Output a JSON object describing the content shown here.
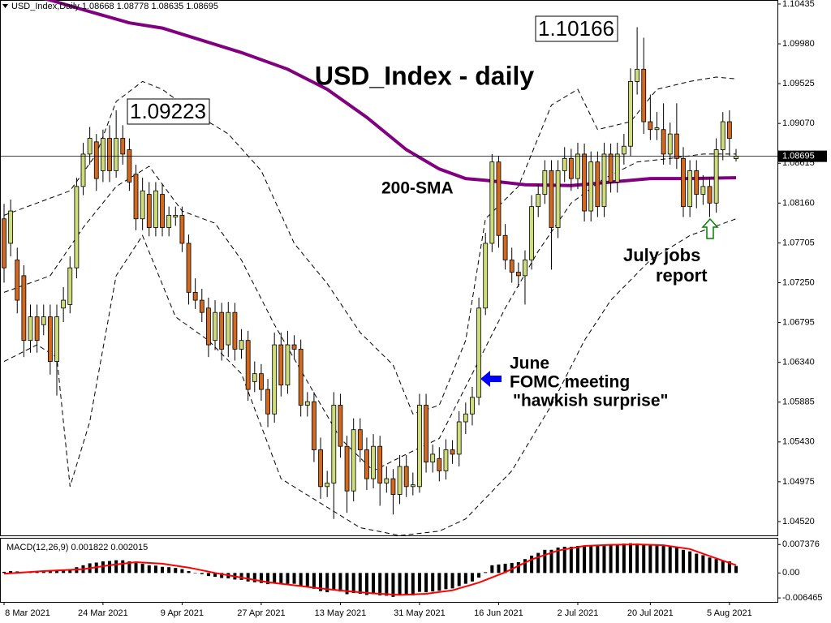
{
  "chart_data": [
    {
      "type": "candlestick",
      "title": "USD_Index - daily",
      "legend_text": "USD_Index,Daily  1.08668 1.08778 1.08635 1.08695",
      "up_color": "#cfdc7a",
      "down_color": "#d2691e",
      "categories": [
        "8 Mar 2021",
        null,
        null,
        null,
        null,
        null,
        null,
        null,
        null,
        null,
        null,
        null,
        null,
        null,
        null,
        "24 Mar 2021",
        null,
        null,
        null,
        null,
        null,
        null,
        null,
        null,
        null,
        null,
        null,
        "9 Apr 2021",
        null,
        null,
        null,
        null,
        null,
        null,
        null,
        null,
        null,
        null,
        null,
        "27 Apr 2021",
        null,
        null,
        null,
        null,
        null,
        null,
        null,
        null,
        null,
        null,
        null,
        "13 May 2021",
        null,
        null,
        null,
        null,
        null,
        null,
        null,
        null,
        null,
        null,
        null,
        "31 May 2021",
        null,
        null,
        null,
        null,
        null,
        null,
        null,
        null,
        null,
        null,
        null,
        "16 Jun 2021",
        null,
        null,
        null,
        null,
        null,
        null,
        null,
        null,
        null,
        null,
        null,
        "2 Jul 2021",
        null,
        null,
        null,
        null,
        null,
        null,
        null,
        null,
        null,
        null,
        "20 Jul 2021",
        null,
        null,
        null,
        null,
        null,
        null,
        null,
        null,
        null,
        null,
        null,
        "5 Aug 2021",
        null
      ],
      "open": [
        1.0798,
        1.077,
        1.0751,
        1.0733,
        1.0659,
        1.0686,
        1.0677,
        1.0686,
        1.0635,
        1.0696,
        1.07,
        1.0742,
        1.0835,
        1.0872,
        1.0886,
        1.0853,
        1.089,
        1.0853,
        1.089,
        1.0877,
        1.0849,
        1.0798,
        1.0826,
        1.0788,
        1.0826,
        1.0788,
        1.08,
        1.0802,
        1.077,
        1.0714,
        1.0705,
        1.0696,
        1.0659,
        1.0691,
        1.0654,
        1.0691,
        1.0649,
        1.0659,
        1.0612,
        1.0621,
        1.0603,
        1.0575,
        1.0654,
        1.0608,
        1.0654,
        1.0649,
        1.0585,
        1.0589,
        1.0534,
        1.0492,
        1.0496,
        1.0585,
        1.0538,
        1.0487,
        1.0557,
        1.0534,
        1.0501,
        1.0538,
        1.0496,
        1.0501,
        1.0483,
        1.0515,
        1.0492,
        1.0492,
        1.0585,
        1.052,
        1.0524,
        1.051,
        1.0534,
        1.0529,
        1.0566,
        1.0575,
        1.0594,
        1.0696,
        1.077,
        1.0863,
        1.0779,
        1.0751,
        1.0737,
        1.0733,
        1.0751,
        1.0812,
        1.0826,
        1.0853,
        1.0788,
        1.0853,
        1.0867,
        1.0844,
        1.0872,
        1.0807,
        1.0863,
        1.0812,
        1.0872,
        1.084,
        1.0872,
        1.0881,
        1.0955,
        1.0969,
        1.0909,
        1.09,
        1.09,
        1.0872,
        1.0895,
        1.0867,
        1.0812,
        1.0853,
        1.0826,
        1.0835,
        1.0816,
        1.0877,
        1.0909,
        1.08668
      ],
      "high": [
        1.0815,
        1.082,
        1.0765,
        1.0745,
        1.07,
        1.07,
        1.07,
        1.07,
        1.07,
        1.072,
        1.0755,
        1.0845,
        1.0885,
        1.0903,
        1.0895,
        1.09,
        1.0905,
        1.0922,
        1.0905,
        1.089,
        1.086,
        1.0845,
        1.084,
        1.084,
        1.0838,
        1.0812,
        1.0812,
        1.0812,
        1.078,
        1.073,
        1.0718,
        1.0708,
        1.0705,
        1.0702,
        1.0703,
        1.0702,
        1.0672,
        1.067,
        1.0635,
        1.0632,
        1.0615,
        1.0668,
        1.0668,
        1.067,
        1.0665,
        1.066,
        1.06,
        1.06,
        1.0548,
        1.051,
        1.06,
        1.0598,
        1.055,
        1.057,
        1.057,
        1.0548,
        1.0552,
        1.055,
        1.0515,
        1.0512,
        1.0528,
        1.0528,
        1.0508,
        1.0598,
        1.0598,
        1.054,
        1.0537,
        1.0546,
        1.0545,
        1.0578,
        1.0588,
        1.0606,
        1.0708,
        1.0782,
        1.0872,
        1.087,
        1.0792,
        1.0765,
        1.0748,
        1.0762,
        1.0825,
        1.0838,
        1.0865,
        1.0865,
        1.0865,
        1.088,
        1.0878,
        1.0885,
        1.0884,
        1.0875,
        1.0875,
        1.0885,
        1.0884,
        1.0885,
        1.0895,
        1.097,
        1.1017,
        1.1005,
        1.094,
        1.092,
        1.093,
        1.0908,
        1.093,
        1.088,
        1.0865,
        1.0865,
        1.0848,
        1.0846,
        1.089,
        1.092,
        1.0922,
        1.08778
      ],
      "low": [
        1.0725,
        1.0755,
        1.069,
        1.064,
        1.0645,
        1.0645,
        1.0665,
        1.062,
        1.0596,
        1.068,
        1.069,
        1.073,
        1.0825,
        1.086,
        1.083,
        1.084,
        1.084,
        1.0845,
        1.086,
        1.083,
        1.0785,
        1.0785,
        1.0778,
        1.0778,
        1.0778,
        1.0778,
        1.079,
        1.076,
        1.07,
        1.0695,
        1.068,
        1.064,
        1.0648,
        1.0636,
        1.064,
        1.0636,
        1.0638,
        1.059,
        1.06,
        1.059,
        1.056,
        1.0565,
        1.0595,
        1.0598,
        1.0638,
        1.0572,
        1.0572,
        1.052,
        1.0478,
        1.048,
        1.0455,
        1.0525,
        1.0462,
        1.0475,
        1.052,
        1.0488,
        1.049,
        1.047,
        1.0485,
        1.046,
        1.0472,
        1.048,
        1.0482,
        1.0485,
        1.0508,
        1.0508,
        1.0498,
        1.05,
        1.0518,
        1.0515,
        1.0552,
        1.0562,
        1.0585,
        1.0688,
        1.076,
        1.0765,
        1.074,
        1.0725,
        1.072,
        1.07,
        1.074,
        1.08,
        1.0815,
        1.074,
        1.0776,
        1.084,
        1.083,
        1.0832,
        1.0795,
        1.0795,
        1.08,
        1.08,
        1.0828,
        1.0828,
        1.086,
        1.087,
        1.094,
        1.0895,
        1.0888,
        1.0888,
        1.086,
        1.086,
        1.0855,
        1.08,
        1.08,
        1.081,
        1.0814,
        1.08,
        1.0805,
        1.0865,
        1.087,
        1.08635
      ],
      "close": [
        1.0742,
        1.0807,
        1.0705,
        1.0659,
        1.0686,
        1.0659,
        1.0686,
        1.0635,
        1.0686,
        1.0705,
        1.0742,
        1.0835,
        1.0872,
        1.089,
        1.0844,
        1.089,
        1.0853,
        1.089,
        1.0872,
        1.084,
        1.0798,
        1.083,
        1.0788,
        1.083,
        1.0788,
        1.0802,
        1.0802,
        1.077,
        1.0714,
        1.0705,
        1.0691,
        1.0654,
        1.0691,
        1.0649,
        1.0691,
        1.0649,
        1.0659,
        1.0603,
        1.0621,
        1.0603,
        1.0575,
        1.0654,
        1.0608,
        1.0654,
        1.0649,
        1.0585,
        1.0589,
        1.0534,
        1.0492,
        1.0496,
        1.0585,
        1.0538,
        1.0487,
        1.0557,
        1.0534,
        1.0501,
        1.0538,
        1.0496,
        1.0501,
        1.0483,
        1.0515,
        1.0492,
        1.0494,
        1.0585,
        1.052,
        1.0529,
        1.051,
        1.0534,
        1.0529,
        1.0566,
        1.0575,
        1.0594,
        1.0696,
        1.077,
        1.0863,
        1.0779,
        1.0751,
        1.0737,
        1.0733,
        1.0751,
        1.0812,
        1.0826,
        1.0853,
        1.0788,
        1.0853,
        1.0867,
        1.0844,
        1.0872,
        1.0807,
        1.0863,
        1.0812,
        1.0872,
        1.084,
        1.0872,
        1.0881,
        1.0955,
        1.0969,
        1.0909,
        1.09,
        1.0902,
        1.0872,
        1.0895,
        1.0867,
        1.0812,
        1.0853,
        1.0826,
        1.0835,
        1.0816,
        1.0877,
        1.0909,
        1.089,
        1.08695
      ],
      "lines": [
        {
          "color": "#800080",
          "dash": false,
          "x": [
            0,
            7,
            12,
            19,
            24,
            30,
            36,
            43,
            49,
            55,
            61,
            66,
            70,
            73,
            79,
            86,
            92,
            98,
            104,
            111
          ],
          "values": [
            1.106,
            1.1048,
            1.1037,
            1.1022,
            1.1016,
            1.1002,
            1.0988,
            1.0969,
            1.0946,
            1.0914,
            1.0877,
            1.0855,
            1.0844,
            1.0842,
            1.0837,
            1.0836,
            1.084,
            1.0844,
            1.0844,
            1.0845
          ]
        },
        {
          "color": "#000000",
          "dash": true,
          "x": [
            0,
            5,
            10,
            14,
            17,
            21,
            24,
            29,
            34,
            39,
            44,
            49,
            54,
            59,
            62,
            66,
            70,
            73,
            78,
            83,
            87,
            90,
            95,
            99,
            104,
            108,
            111
          ],
          "values": [
            1.0802,
            1.0816,
            1.083,
            1.0872,
            1.0932,
            1.0955,
            1.0946,
            1.0918,
            1.0895,
            1.0853,
            1.077,
            1.0724,
            1.0668,
            1.0631,
            1.0575,
            1.0585,
            1.0659,
            1.0798,
            1.0835,
            1.0928,
            1.0946,
            1.09,
            1.0909,
            1.0946,
            1.0955,
            1.096,
            1.0958
          ]
        },
        {
          "color": "#000000",
          "dash": true,
          "x": [
            0,
            7,
            12,
            17,
            22,
            27,
            32,
            36,
            41,
            46,
            51,
            56,
            61,
            66,
            71,
            76,
            81,
            86,
            91,
            96,
            101,
            106,
            111
          ],
          "values": [
            1.0714,
            1.0733,
            1.0788,
            1.0835,
            1.0858,
            1.0807,
            1.0793,
            1.0751,
            1.0677,
            1.0612,
            1.0547,
            1.051,
            1.0529,
            1.0547,
            1.0621,
            1.0696,
            1.0761,
            1.0816,
            1.0844,
            1.0863,
            1.0867,
            1.0872,
            1.0872
          ]
        },
        {
          "color": "#000000",
          "dash": true,
          "x": [
            0,
            5,
            8,
            10,
            13,
            17,
            21,
            26,
            31,
            36,
            42,
            48,
            54,
            60,
            66,
            70,
            77,
            83,
            88,
            92,
            98,
            104,
            111
          ],
          "values": [
            1.0635,
            1.0654,
            1.064,
            1.0492,
            1.0566,
            1.0733,
            1.0779,
            1.0686,
            1.0659,
            1.0621,
            1.0501,
            1.0473,
            1.0445,
            1.0436,
            1.0441,
            1.0455,
            1.051,
            1.0585,
            1.0659,
            1.0705,
            1.0751,
            1.0779,
            1.0798
          ]
        }
      ],
      "current_price": 1.08695,
      "ylim": [
        1.04362,
        1.10481
      ],
      "yticks": [
        1.10435,
        {
          "value": 1.0998,
          "label": "1.09980"
        },
        1.09525,
        {
          "value": 1.0907,
          "label": "1.09070"
        },
        1.08615,
        {
          "value": 1.0816,
          "label": "1.08160"
        },
        1.07705,
        {
          "value": 1.0725,
          "label": "1.07250"
        },
        1.06795,
        {
          "value": 1.0634,
          "label": "1.06340"
        },
        1.05885,
        {
          "value": 1.0543,
          "label": "1.05430"
        },
        1.04975,
        {
          "value": 1.0452,
          "label": "1.04520"
        }
      ],
      "annotations": [
        {
          "text": "1.10166"
        },
        {
          "text": "1.09223"
        },
        {
          "text": "200-SMA",
          "color": "#800080"
        },
        {
          "lines": [
            "June",
            "FOMC meeting",
            "\"hawkish surprise\""
          ],
          "color": "#0000ff"
        },
        {
          "lines": [
            "July jobs",
            "report"
          ],
          "color": "#008000"
        }
      ]
    },
    {
      "type": "bar",
      "label": "MACD(12,26,9) 0.001822 0.002015",
      "color": "#000000",
      "values": [
        0.0003,
        0.0005,
        0.0004,
        0.0002,
        0.0003,
        0.0004,
        0.0005,
        0.0004,
        0.0006,
        0.0008,
        0.001,
        0.0015,
        0.002,
        0.0025,
        0.0027,
        0.003,
        0.0031,
        0.0033,
        0.0033,
        0.003,
        0.0026,
        0.0024,
        0.002,
        0.0019,
        0.0016,
        0.0015,
        0.0013,
        0.001,
        0.0005,
        0.0,
        -0.0003,
        -0.0008,
        -0.001,
        -0.0013,
        -0.0014,
        -0.0017,
        -0.0018,
        -0.0022,
        -0.0024,
        -0.0026,
        -0.0029,
        -0.0027,
        -0.0029,
        -0.0028,
        -0.0028,
        -0.0033,
        -0.0036,
        -0.0041,
        -0.0047,
        -0.005,
        -0.0045,
        -0.0048,
        -0.0055,
        -0.0052,
        -0.0054,
        -0.0057,
        -0.0055,
        -0.0058,
        -0.0059,
        -0.0062,
        -0.0058,
        -0.0058,
        -0.0058,
        -0.0049,
        -0.005,
        -0.0048,
        -0.0046,
        -0.0042,
        -0.004,
        -0.0034,
        -0.0028,
        -0.0022,
        -0.0012,
        0.0002,
        0.002,
        0.0022,
        0.0024,
        0.0026,
        0.0028,
        0.0036,
        0.0045,
        0.0052,
        0.006,
        0.006,
        0.0066,
        0.0068,
        0.0068,
        0.007,
        0.007,
        0.007,
        0.0072,
        0.0072,
        0.0072,
        0.0073,
        0.0076,
        0.0077,
        0.0076,
        0.0075,
        0.0074,
        0.0073,
        0.007,
        0.0068,
        0.0066,
        0.006,
        0.0056,
        0.005,
        0.0046,
        0.004,
        0.0036,
        0.0033,
        0.003,
        0.001822
      ],
      "signal": {
        "color": "#ff0000",
        "x": [
          0,
          6,
          12,
          16,
          20,
          24,
          28,
          32,
          36,
          40,
          44,
          48,
          52,
          56,
          60,
          64,
          68,
          72,
          76,
          80,
          84,
          88,
          92,
          96,
          100,
          104,
          108,
          111
        ],
        "values": [
          -0.0002,
          0.0005,
          0.001,
          0.002,
          0.0028,
          0.0024,
          0.0014,
          0.0,
          -0.0012,
          -0.0024,
          -0.0032,
          -0.004,
          -0.0047,
          -0.0053,
          -0.0057,
          -0.0054,
          -0.0045,
          -0.0025,
          0.0002,
          0.0035,
          0.0058,
          0.007,
          0.0073,
          0.0074,
          0.0072,
          0.0062,
          0.0038,
          0.002015
        ]
      },
      "ylim": [
        -0.0075,
        0.0089
      ],
      "yticks": [
        0.007376,
        {
          "value": 0,
          "label": "0.00"
        },
        -0.006465
      ]
    }
  ]
}
